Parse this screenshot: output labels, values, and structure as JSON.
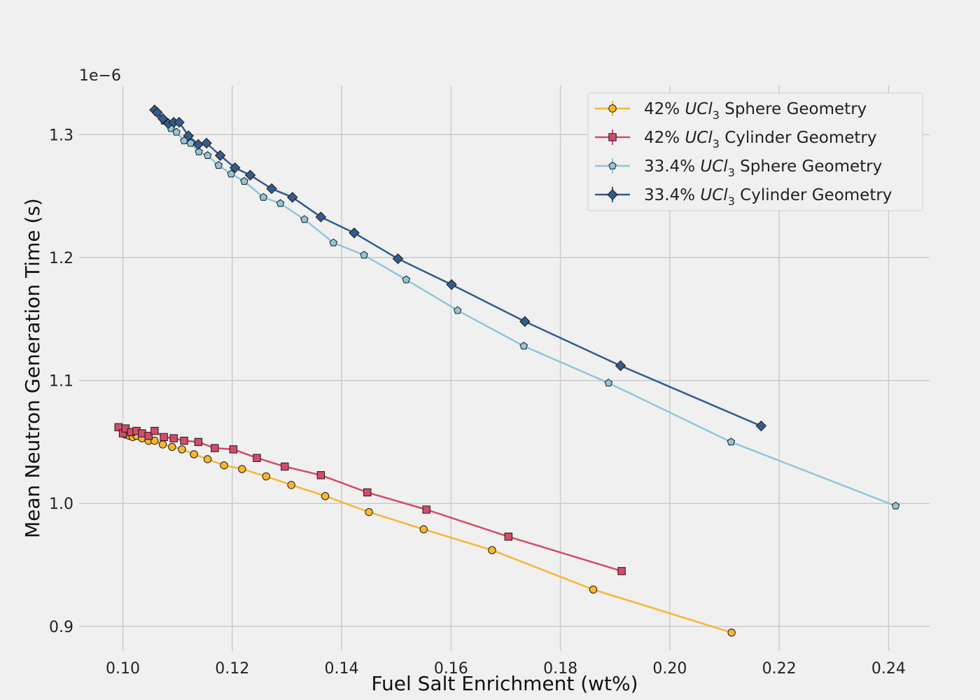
{
  "chart_data": {
    "type": "line",
    "xlabel": "Fuel Salt Enrichment (wt%)",
    "ylabel": "Mean Neutron Generation Time (s)",
    "y_offset_text": "1e−6",
    "y_scale_exponent": -6,
    "xlim": [
      0.092,
      0.2475
    ],
    "ylim": [
      0.88,
      1.34
    ],
    "x_ticks": [
      0.1,
      0.12,
      0.14,
      0.16,
      0.18,
      0.2,
      0.22,
      0.24
    ],
    "x_tick_labels": [
      "0.10",
      "0.12",
      "0.14",
      "0.16",
      "0.18",
      "0.20",
      "0.22",
      "0.24"
    ],
    "y_ticks": [
      0.9,
      1.0,
      1.1,
      1.2,
      1.3
    ],
    "y_tick_labels": [
      "0.9",
      "1.0",
      "1.1",
      "1.2",
      "1.3"
    ],
    "grid": true,
    "legend_position": "top-right",
    "series": [
      {
        "name_prefix": "42% ",
        "name_formula": "UCl",
        "name_sub": "3",
        "name_suffix": " Sphere Geometry",
        "color": "#f7b731",
        "marker": "circle",
        "x": [
          0.1005,
          0.1012,
          0.1018,
          0.1025,
          0.1035,
          0.1047,
          0.1058,
          0.1073,
          0.109,
          0.1108,
          0.113,
          0.1155,
          0.1185,
          0.1218,
          0.1262,
          0.1308,
          0.137,
          0.145,
          0.155,
          0.1675,
          0.186,
          0.2113
        ],
        "y": [
          1.056,
          1.055,
          1.054,
          1.055,
          1.053,
          1.051,
          1.051,
          1.048,
          1.046,
          1.044,
          1.04,
          1.036,
          1.031,
          1.028,
          1.022,
          1.015,
          1.006,
          0.993,
          0.979,
          0.962,
          0.93,
          0.895
        ]
      },
      {
        "name_prefix": "42% ",
        "name_formula": "UCl",
        "name_sub": "3",
        "name_suffix": " Cylinder Geometry",
        "color": "#d64a6a",
        "marker": "square",
        "x": [
          0.0992,
          0.1,
          0.1005,
          0.1015,
          0.1025,
          0.1035,
          0.1047,
          0.1058,
          0.1075,
          0.1093,
          0.1112,
          0.1138,
          0.1168,
          0.1202,
          0.1245,
          0.1296,
          0.1362,
          0.1447,
          0.1555,
          0.1705,
          0.1912
        ],
        "y": [
          1.062,
          1.057,
          1.061,
          1.058,
          1.059,
          1.057,
          1.055,
          1.059,
          1.054,
          1.053,
          1.051,
          1.05,
          1.045,
          1.044,
          1.037,
          1.03,
          1.023,
          1.009,
          0.995,
          0.973,
          0.945
        ]
      },
      {
        "name_prefix": "33.4% ",
        "name_formula": "UCl",
        "name_sub": "3",
        "name_suffix": " Sphere Geometry",
        "color": "#92c5d9",
        "marker": "pentagon",
        "x": [
          0.1062,
          0.1075,
          0.1088,
          0.1098,
          0.1112,
          0.1124,
          0.1139,
          0.1155,
          0.1175,
          0.1198,
          0.1222,
          0.1257,
          0.1288,
          0.1332,
          0.1385,
          0.1441,
          0.1518,
          0.1612,
          0.1733,
          0.1888,
          0.2112,
          0.2413
        ],
        "y": [
          1.318,
          1.311,
          1.305,
          1.302,
          1.295,
          1.293,
          1.286,
          1.283,
          1.275,
          1.268,
          1.262,
          1.249,
          1.244,
          1.231,
          1.212,
          1.202,
          1.182,
          1.157,
          1.128,
          1.098,
          1.05,
          0.998
        ]
      },
      {
        "name_prefix": "33.4% ",
        "name_formula": "UCl",
        "name_sub": "3",
        "name_suffix": " Cylinder Geometry",
        "color": "#345b8c",
        "marker": "diamond",
        "x": [
          0.1058,
          0.1063,
          0.1073,
          0.1083,
          0.1093,
          0.1103,
          0.112,
          0.1138,
          0.1153,
          0.1178,
          0.1205,
          0.1233,
          0.1272,
          0.131,
          0.1362,
          0.1423,
          0.1503,
          0.1601,
          0.1735,
          0.191,
          0.2167
        ],
        "y": [
          1.32,
          1.318,
          1.313,
          1.309,
          1.31,
          1.31,
          1.299,
          1.292,
          1.293,
          1.283,
          1.273,
          1.267,
          1.256,
          1.249,
          1.233,
          1.22,
          1.199,
          1.178,
          1.148,
          1.112,
          1.063
        ]
      }
    ]
  }
}
